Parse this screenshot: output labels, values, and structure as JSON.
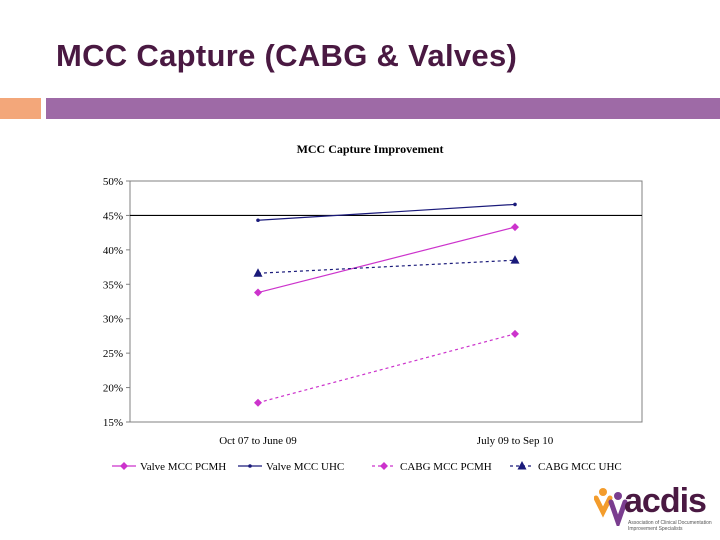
{
  "slide": {
    "title": "MCC Capture (CABG & Valves)",
    "colors": {
      "title": "#4a1942",
      "accent_bar": "#9e6aa6",
      "side_bar": "#f3a77a"
    }
  },
  "logo": {
    "wordmark": "acdis",
    "tagline": "Association of Clinical Documentation Improvement Specialists",
    "icon": "people-figures-icon"
  },
  "chart_data": {
    "type": "line",
    "title": "MCC Capture Improvement",
    "categories": [
      "Oct 07 to June 09",
      "July 09 to Sep 10"
    ],
    "ylim": [
      0.15,
      0.5
    ],
    "yticks": [
      "50%",
      "45%",
      "40%",
      "35%",
      "30%",
      "25%",
      "20%",
      "15%"
    ],
    "reference_line": 0.45,
    "grid": false,
    "legend_position": "bottom",
    "series": [
      {
        "name": "Valve MCC PCMH",
        "values": [
          0.338,
          0.433
        ],
        "color": "#cc33cc",
        "dash": "solid",
        "marker": "diamond"
      },
      {
        "name": "Valve MCC UHC",
        "values": [
          0.443,
          0.466
        ],
        "color": "#1a1a7a",
        "dash": "solid",
        "marker": "dot"
      },
      {
        "name": "CABG MCC PCMH",
        "values": [
          0.178,
          0.278
        ],
        "color": "#cc33cc",
        "dash": "dashed",
        "marker": "diamond"
      },
      {
        "name": "CABG MCC UHC",
        "values": [
          0.366,
          0.385
        ],
        "color": "#1a1a7a",
        "dash": "dashed",
        "marker": "triangle"
      }
    ]
  }
}
